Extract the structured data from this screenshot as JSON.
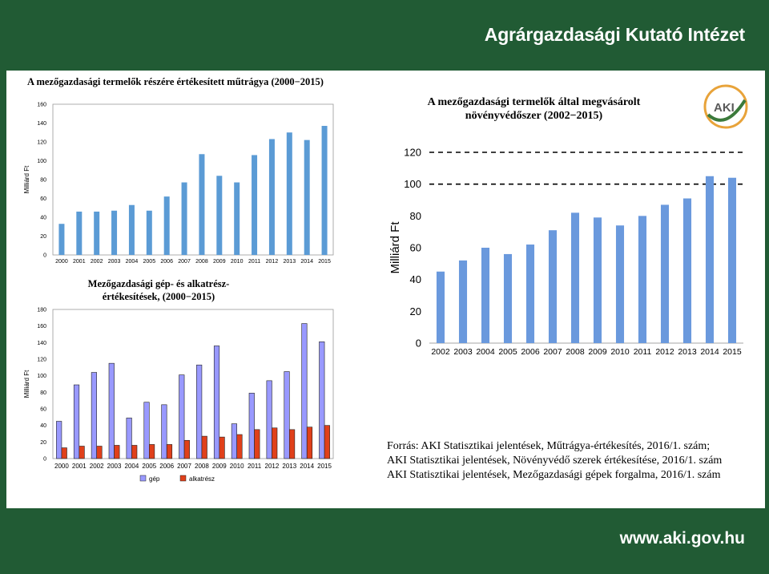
{
  "header": {
    "title": "Agrárgazdasági Kutató Intézet"
  },
  "footer": {
    "url": "www.aki.gov.hu"
  },
  "logo": {
    "text": "AKI"
  },
  "source_lines": [
    "Forrás: AKI Statisztikai jelentések, Műtrágya-értékesítés, 2016/1. szám;",
    "AKI Statisztikai jelentések, Növényvédő szerek értékesítése, 2016/1. szám",
    "AKI Statisztikai jelentések, Mezőgazdasági gépek forgalma, 2016/1. szám"
  ],
  "chart_data": [
    {
      "type": "bar",
      "title": "A mezőgazdasági termelők részére értékesített műtrágya (2000−2015)",
      "ylabel": "Milliárd Ft",
      "xlabel": "",
      "ylim": [
        0,
        160
      ],
      "yticks": [
        0,
        20,
        40,
        60,
        80,
        100,
        120,
        140,
        160
      ],
      "categories": [
        "2000",
        "2001",
        "2002",
        "2003",
        "2004",
        "2005",
        "2006",
        "2007",
        "2008",
        "2009",
        "2010",
        "2011",
        "2012",
        "2013",
        "2014",
        "2015"
      ],
      "series": [
        {
          "values": [
            33,
            46,
            46,
            47,
            53,
            47,
            62,
            77,
            107,
            84,
            77,
            106,
            123,
            130,
            122,
            137
          ],
          "color": "#5b9bd5"
        }
      ],
      "grid": false
    },
    {
      "type": "bar",
      "title": "A mezőgazdasági termelők által megvásárolt növényvédőszer (2002−2015)",
      "ylabel": "Milliárd Ft",
      "xlabel": "",
      "ylim": [
        0,
        120
      ],
      "yticks": [
        0,
        20,
        40,
        60,
        80,
        100,
        120
      ],
      "categories": [
        "2002",
        "2003",
        "2004",
        "2005",
        "2006",
        "2007",
        "2008",
        "2009",
        "2010",
        "2011",
        "2012",
        "2013",
        "2014",
        "2015"
      ],
      "series": [
        {
          "values": [
            45,
            52,
            60,
            56,
            62,
            71,
            82,
            79,
            74,
            80,
            87,
            91,
            105,
            104
          ],
          "color": "#6a99dd"
        }
      ],
      "grid": "dashed at 100 and 120"
    },
    {
      "type": "bar",
      "title": "Mezőgazdasági gép- és alkatrész-értékesítések, (2000−2015)",
      "ylabel": "Milliárd Ft",
      "xlabel": "",
      "ylim": [
        0,
        180
      ],
      "yticks": [
        0,
        20,
        40,
        60,
        80,
        100,
        120,
        140,
        160,
        180
      ],
      "categories": [
        "2000",
        "2001",
        "2002",
        "2003",
        "2004",
        "2005",
        "2006",
        "2007",
        "2008",
        "2009",
        "2010",
        "2011",
        "2012",
        "2013",
        "2014",
        "2015"
      ],
      "series": [
        {
          "name": "gép",
          "values": [
            45,
            89,
            104,
            115,
            49,
            68,
            65,
            101,
            113,
            136,
            42,
            79,
            94,
            105,
            163,
            141
          ],
          "color": "#9999ff"
        },
        {
          "name": "alkatrész",
          "values": [
            13,
            15,
            15,
            16,
            16,
            17,
            17,
            22,
            27,
            26,
            29,
            35,
            37,
            35,
            38,
            40
          ],
          "color": "#e0401a"
        }
      ],
      "legend": "bottom",
      "grid": false
    }
  ]
}
